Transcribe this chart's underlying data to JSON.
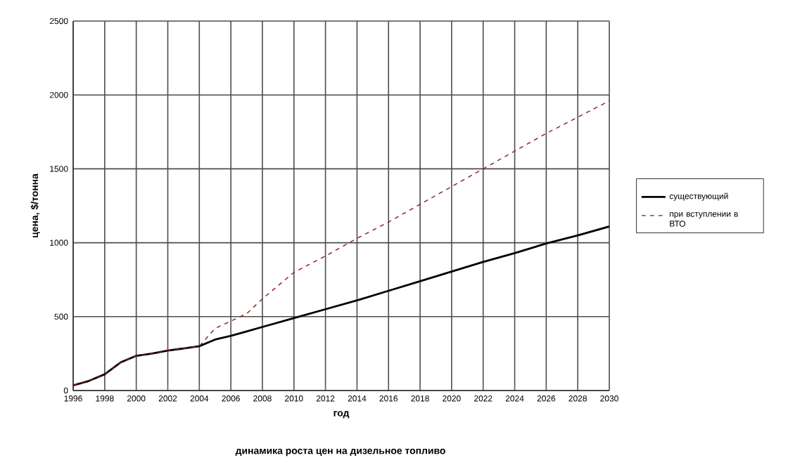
{
  "chart_data": {
    "type": "line",
    "xlabel": "год",
    "ylabel": "цена, $/тонна",
    "annotations": [
      "динамика роста цен на дизельное топливо"
    ],
    "x": [
      1996,
      1997,
      1998,
      1999,
      2000,
      2001,
      2002,
      2003,
      2004,
      2005,
      2006,
      2007,
      2008,
      2010,
      2012,
      2014,
      2016,
      2018,
      2020,
      2022,
      2024,
      2026,
      2028,
      2030
    ],
    "series": [
      {
        "name": "существующий",
        "color": "#000000",
        "line_style": "solid",
        "values": [
          35,
          65,
          110,
          190,
          235,
          250,
          270,
          285,
          300,
          345,
          370,
          400,
          430,
          490,
          550,
          610,
          675,
          740,
          805,
          870,
          930,
          995,
          1050,
          1110
        ]
      },
      {
        "name": "при вступлении в ВТО",
        "color": "#8b1a1a",
        "line_style": "dashed",
        "values": [
          35,
          65,
          110,
          190,
          235,
          250,
          270,
          285,
          300,
          420,
          470,
          520,
          620,
          800,
          910,
          1030,
          1140,
          1260,
          1380,
          1500,
          1620,
          1740,
          1850,
          1960
        ]
      }
    ],
    "xlim": [
      1996,
      2030
    ],
    "xticks": [
      1996,
      1998,
      2000,
      2002,
      2004,
      2006,
      2008,
      2010,
      2012,
      2014,
      2016,
      2018,
      2020,
      2022,
      2024,
      2026,
      2028,
      2030
    ],
    "ylim": [
      0,
      2500
    ],
    "yticks": [
      0,
      500,
      1000,
      1500,
      2000,
      2500
    ],
    "grid": true,
    "legend": "right",
    "marker": "none"
  }
}
